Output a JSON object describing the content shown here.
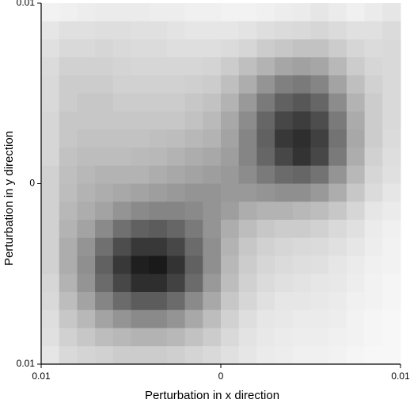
{
  "chart_data": {
    "type": "heatmap",
    "x_label": "Perturbation in x direction",
    "y_label": "Perturbation in y direction",
    "xlim": [
      -0.01,
      0.01
    ],
    "ylim": [
      -0.01,
      0.01
    ],
    "xticks": [
      {
        "value": -0.01,
        "label": "0.01"
      },
      0,
      0.01
    ],
    "yticks": [
      {
        "value": -0.01,
        "label": "0.01"
      },
      0,
      0.01
    ],
    "zlim": [
      0,
      1
    ],
    "colormap": [
      "#ffffff",
      "#000000"
    ],
    "z": [
      [
        0.05,
        0.06,
        0.07,
        0.08,
        0.08,
        0.08,
        0.07,
        0.07,
        0.06,
        0.06,
        0.05,
        0.05,
        0.06,
        0.07,
        0.08,
        0.1,
        0.08,
        0.06,
        0.08,
        0.1
      ],
      [
        0.1,
        0.12,
        0.12,
        0.13,
        0.13,
        0.12,
        0.12,
        0.11,
        0.1,
        0.1,
        0.1,
        0.11,
        0.13,
        0.14,
        0.15,
        0.16,
        0.14,
        0.12,
        0.12,
        0.14
      ],
      [
        0.12,
        0.15,
        0.15,
        0.16,
        0.15,
        0.14,
        0.14,
        0.13,
        0.13,
        0.13,
        0.14,
        0.16,
        0.2,
        0.22,
        0.24,
        0.24,
        0.2,
        0.16,
        0.14,
        0.15
      ],
      [
        0.14,
        0.18,
        0.18,
        0.18,
        0.17,
        0.16,
        0.16,
        0.16,
        0.16,
        0.17,
        0.2,
        0.25,
        0.3,
        0.35,
        0.37,
        0.35,
        0.28,
        0.2,
        0.16,
        0.15
      ],
      [
        0.15,
        0.2,
        0.2,
        0.2,
        0.18,
        0.18,
        0.18,
        0.18,
        0.19,
        0.2,
        0.25,
        0.32,
        0.42,
        0.5,
        0.52,
        0.48,
        0.36,
        0.25,
        0.18,
        0.15
      ],
      [
        0.15,
        0.2,
        0.22,
        0.22,
        0.2,
        0.2,
        0.2,
        0.2,
        0.22,
        0.24,
        0.3,
        0.4,
        0.52,
        0.62,
        0.66,
        0.6,
        0.45,
        0.3,
        0.2,
        0.15
      ],
      [
        0.16,
        0.22,
        0.22,
        0.22,
        0.22,
        0.22,
        0.22,
        0.22,
        0.24,
        0.27,
        0.34,
        0.45,
        0.6,
        0.72,
        0.76,
        0.7,
        0.52,
        0.33,
        0.2,
        0.15
      ],
      [
        0.16,
        0.22,
        0.24,
        0.24,
        0.24,
        0.24,
        0.25,
        0.26,
        0.28,
        0.3,
        0.36,
        0.48,
        0.62,
        0.78,
        0.82,
        0.75,
        0.55,
        0.34,
        0.2,
        0.14
      ],
      [
        0.16,
        0.24,
        0.26,
        0.26,
        0.26,
        0.27,
        0.28,
        0.3,
        0.32,
        0.34,
        0.38,
        0.48,
        0.6,
        0.72,
        0.8,
        0.72,
        0.52,
        0.32,
        0.18,
        0.13
      ],
      [
        0.18,
        0.25,
        0.28,
        0.3,
        0.3,
        0.3,
        0.32,
        0.34,
        0.36,
        0.38,
        0.4,
        0.45,
        0.52,
        0.58,
        0.6,
        0.55,
        0.42,
        0.28,
        0.16,
        0.12
      ],
      [
        0.18,
        0.26,
        0.3,
        0.32,
        0.34,
        0.36,
        0.38,
        0.4,
        0.42,
        0.42,
        0.4,
        0.4,
        0.42,
        0.44,
        0.44,
        0.4,
        0.32,
        0.22,
        0.14,
        0.1
      ],
      [
        0.18,
        0.28,
        0.32,
        0.36,
        0.42,
        0.46,
        0.48,
        0.48,
        0.46,
        0.42,
        0.38,
        0.32,
        0.3,
        0.3,
        0.28,
        0.26,
        0.22,
        0.16,
        0.1,
        0.08
      ],
      [
        0.18,
        0.3,
        0.36,
        0.46,
        0.56,
        0.62,
        0.64,
        0.6,
        0.52,
        0.42,
        0.32,
        0.26,
        0.22,
        0.2,
        0.2,
        0.18,
        0.15,
        0.12,
        0.08,
        0.06
      ],
      [
        0.18,
        0.32,
        0.42,
        0.56,
        0.7,
        0.78,
        0.78,
        0.72,
        0.58,
        0.44,
        0.3,
        0.22,
        0.18,
        0.16,
        0.15,
        0.14,
        0.12,
        0.1,
        0.07,
        0.05
      ],
      [
        0.18,
        0.32,
        0.44,
        0.62,
        0.78,
        0.88,
        0.9,
        0.8,
        0.62,
        0.44,
        0.28,
        0.2,
        0.16,
        0.14,
        0.13,
        0.12,
        0.1,
        0.08,
        0.06,
        0.05
      ],
      [
        0.16,
        0.3,
        0.42,
        0.58,
        0.72,
        0.82,
        0.82,
        0.74,
        0.58,
        0.4,
        0.26,
        0.18,
        0.14,
        0.12,
        0.11,
        0.1,
        0.09,
        0.07,
        0.05,
        0.04
      ],
      [
        0.15,
        0.26,
        0.36,
        0.48,
        0.58,
        0.64,
        0.64,
        0.58,
        0.46,
        0.34,
        0.22,
        0.16,
        0.12,
        0.1,
        0.1,
        0.09,
        0.08,
        0.06,
        0.05,
        0.04
      ],
      [
        0.13,
        0.22,
        0.28,
        0.36,
        0.42,
        0.46,
        0.46,
        0.42,
        0.34,
        0.26,
        0.18,
        0.13,
        0.1,
        0.09,
        0.08,
        0.08,
        0.07,
        0.05,
        0.04,
        0.03
      ],
      [
        0.12,
        0.18,
        0.22,
        0.26,
        0.28,
        0.3,
        0.3,
        0.28,
        0.24,
        0.2,
        0.15,
        0.11,
        0.09,
        0.08,
        0.07,
        0.07,
        0.06,
        0.05,
        0.04,
        0.03
      ],
      [
        0.1,
        0.15,
        0.17,
        0.18,
        0.2,
        0.2,
        0.2,
        0.19,
        0.17,
        0.15,
        0.12,
        0.1,
        0.08,
        0.07,
        0.06,
        0.06,
        0.05,
        0.04,
        0.03,
        0.03
      ]
    ]
  }
}
